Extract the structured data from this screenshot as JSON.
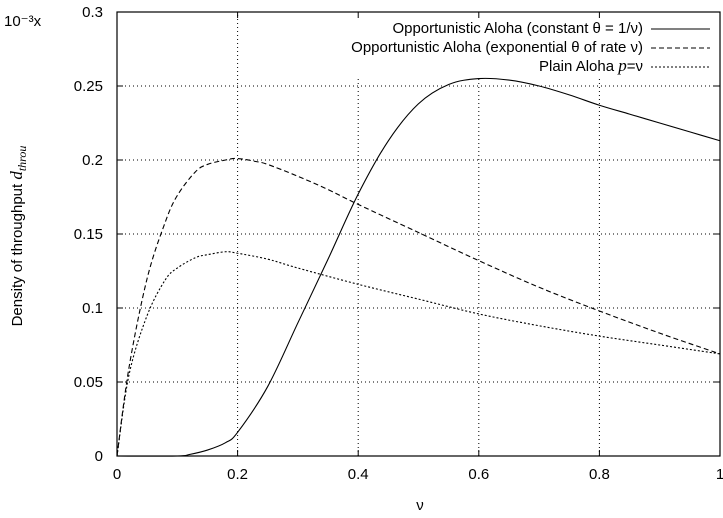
{
  "chart_data": {
    "type": "line",
    "scale_label": "10⁻³x",
    "xlabel": "ν",
    "ylabel": "Density of throughput d_throu",
    "ylabel_main": "Density of throughput ",
    "ylabel_math": "d",
    "ylabel_sub": "throu",
    "xlim": [
      0,
      1
    ],
    "ylim": [
      0,
      0.3
    ],
    "x_ticks": [
      0,
      0.2,
      0.4,
      0.6,
      0.8,
      1
    ],
    "x_tick_labels": [
      "0",
      "0.2",
      "0.4",
      "0.6",
      "0.8",
      "1"
    ],
    "y_ticks": [
      0,
      0.05,
      0.1,
      0.15,
      0.2,
      0.25,
      0.3
    ],
    "y_tick_labels": [
      "0",
      "0.05",
      "0.1",
      "0.15",
      "0.2",
      "0.25",
      "0.3"
    ],
    "grid": true,
    "legend_position": "top-right",
    "series": [
      {
        "name": "Opportunistic Aloha (constant θ = 1/ν)",
        "line_style": "solid",
        "x": [
          0,
          0.1,
          0.12,
          0.15,
          0.18,
          0.2,
          0.25,
          0.3,
          0.35,
          0.4,
          0.45,
          0.5,
          0.55,
          0.6,
          0.65,
          0.7,
          0.75,
          0.8,
          0.85,
          0.9,
          0.95,
          1.0
        ],
        "y": [
          0,
          0,
          0.001,
          0.004,
          0.009,
          0.016,
          0.047,
          0.09,
          0.133,
          0.177,
          0.213,
          0.238,
          0.251,
          0.255,
          0.254,
          0.25,
          0.244,
          0.237,
          0.231,
          0.225,
          0.219,
          0.213
        ]
      },
      {
        "name": "Opportunistic Aloha (exponential θ of rate ν)",
        "line_style": "dashed",
        "x": [
          0,
          0.02,
          0.05,
          0.08,
          0.1,
          0.13,
          0.15,
          0.18,
          0.2,
          0.23,
          0.25,
          0.3,
          0.35,
          0.4,
          0.5,
          0.6,
          0.7,
          0.8,
          0.9,
          1.0
        ],
        "y": [
          0,
          0.06,
          0.12,
          0.158,
          0.176,
          0.192,
          0.197,
          0.2,
          0.201,
          0.199,
          0.197,
          0.189,
          0.18,
          0.17,
          0.151,
          0.132,
          0.114,
          0.098,
          0.083,
          0.069
        ]
      },
      {
        "name": "Plain Aloha p=ν",
        "name_prefix": "Plain Aloha ",
        "name_math": "p",
        "name_suffix": "=ν",
        "line_style": "dotted",
        "x": [
          0,
          0.02,
          0.05,
          0.08,
          0.1,
          0.13,
          0.15,
          0.18,
          0.2,
          0.25,
          0.3,
          0.4,
          0.5,
          0.6,
          0.7,
          0.8,
          0.9,
          1.0
        ],
        "y": [
          0,
          0.055,
          0.095,
          0.119,
          0.127,
          0.134,
          0.136,
          0.138,
          0.137,
          0.133,
          0.127,
          0.116,
          0.106,
          0.096,
          0.088,
          0.081,
          0.075,
          0.069
        ]
      }
    ]
  }
}
